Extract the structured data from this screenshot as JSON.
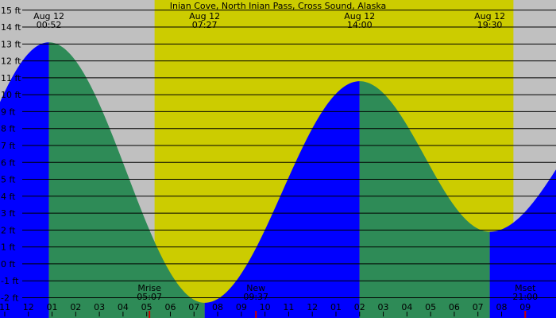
{
  "chart_data": {
    "type": "area",
    "title": "Inian Cove, North Inian Pass, Cross Sound, Alaska",
    "y_unit": "ft",
    "ylim": [
      -3.2,
      15.6
    ],
    "y_ticks": [
      -2,
      -1,
      0,
      1,
      2,
      3,
      4,
      5,
      6,
      7,
      8,
      9,
      10,
      11,
      12,
      13,
      14,
      15
    ],
    "y_tick_labels": [
      "-2 ft",
      "-1 ft",
      "0 ft",
      "1 ft",
      "2 ft",
      "3 ft",
      "4 ft",
      "5 ft",
      "6 ft",
      "7 ft",
      "8 ft",
      "9 ft",
      "10 ft",
      "11 ft",
      "12 ft",
      "13 ft",
      "14 ft",
      "15 ft"
    ],
    "xlim_hours": [
      -1.2,
      22.3
    ],
    "tide_events": [
      {
        "date": "Aug 12",
        "time": "00:52",
        "type": "high",
        "height_ft": 13.1
      },
      {
        "date": "Aug 12",
        "time": "07:27",
        "type": "low",
        "height_ft": -2.3
      },
      {
        "date": "Aug 12",
        "time": "14:00",
        "type": "high",
        "height_ft": 10.8
      },
      {
        "date": "Aug 12",
        "time": "19:30",
        "type": "low",
        "height_ft": 1.9
      }
    ],
    "daylight": {
      "start": "05:20",
      "end": "20:30"
    },
    "hour_labels": [
      "11",
      "12",
      "01",
      "02",
      "03",
      "04",
      "05",
      "06",
      "07",
      "08",
      "09",
      "10",
      "11",
      "12",
      "01",
      "02",
      "03",
      "04",
      "05",
      "06",
      "07",
      "08",
      "09"
    ],
    "moon_events": [
      {
        "label": "Mrise",
        "time": "05:07"
      },
      {
        "label": "New",
        "time": "09:37"
      },
      {
        "label": "Mset",
        "time": "21:00"
      }
    ],
    "colors": {
      "background": "#c0c0c0",
      "daylight": "#cccc00",
      "rising": "#0000ff",
      "falling": "#2e8b57",
      "grid": "#000000",
      "moon_tick": "#cc0000"
    }
  }
}
